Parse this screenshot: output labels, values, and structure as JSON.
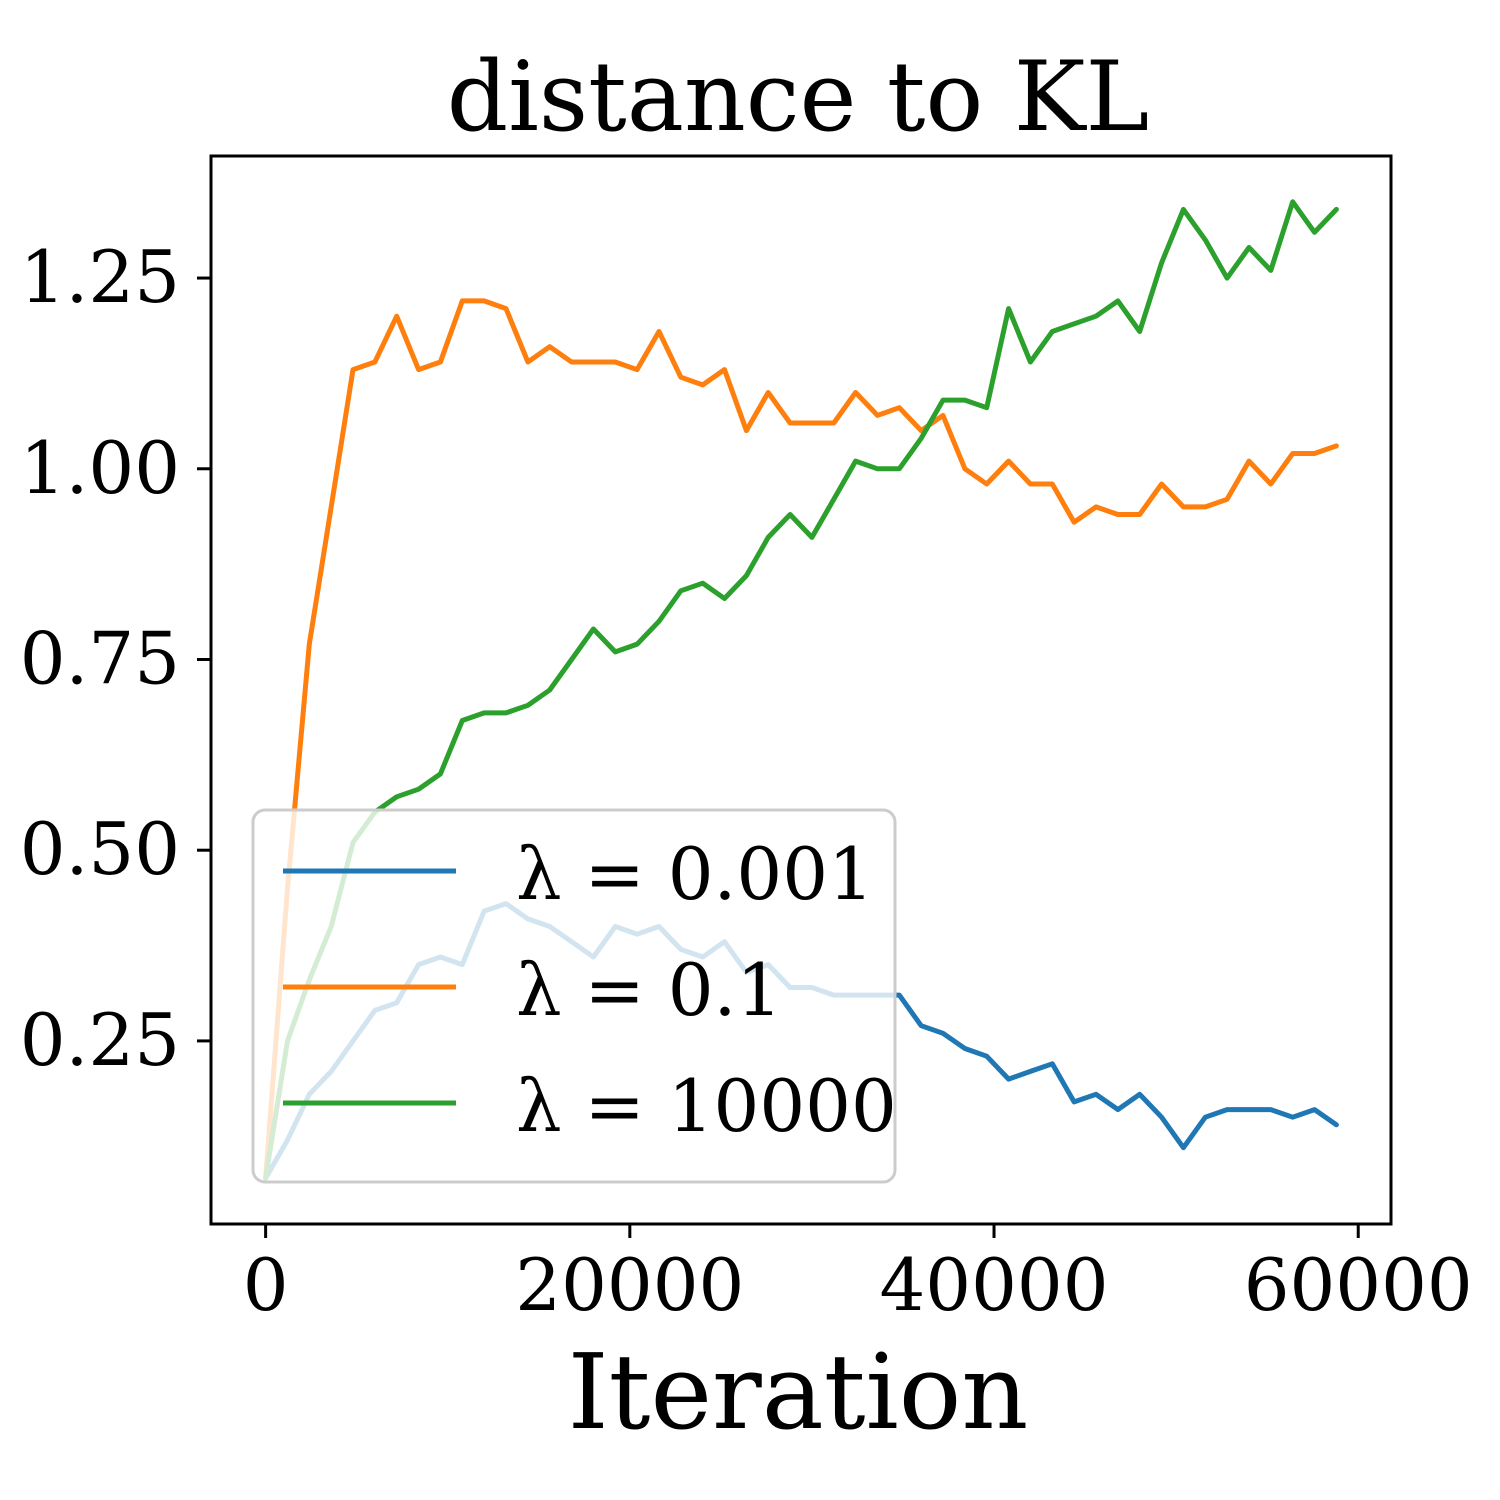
{
  "chart_data": {
    "type": "line",
    "title": "distance to KL",
    "xlabel": "Iteration",
    "ylabel": "",
    "xlim": [
      -3000,
      61800
    ],
    "ylim": [
      0.01,
      1.41
    ],
    "xticks": [
      0,
      20000,
      40000,
      60000
    ],
    "xtick_labels": [
      "0",
      "20000",
      "40000",
      "60000"
    ],
    "yticks": [
      0.25,
      0.5,
      0.75,
      1.0,
      1.25
    ],
    "ytick_labels": [
      "0.25",
      "0.50",
      "0.75",
      "1.00",
      "1.25"
    ],
    "grid": false,
    "legend_position": "lower-left",
    "x": [
      0,
      1200,
      2400,
      3600,
      4800,
      6000,
      7200,
      8400,
      9600,
      10800,
      12000,
      13200,
      14400,
      15600,
      16800,
      18000,
      19200,
      20400,
      21600,
      22800,
      24000,
      25200,
      26400,
      27600,
      28800,
      30000,
      31200,
      32400,
      33600,
      34800,
      36000,
      37200,
      38400,
      39600,
      40800,
      42000,
      43200,
      44400,
      45600,
      46800,
      48000,
      49200,
      50400,
      51600,
      52800,
      54000,
      55200,
      56400,
      57600,
      58800
    ],
    "series": [
      {
        "name": "λ = 0.001",
        "color": "#1f77b4",
        "values": [
          0.07,
          0.12,
          0.18,
          0.21,
          0.25,
          0.29,
          0.3,
          0.35,
          0.36,
          0.35,
          0.42,
          0.43,
          0.41,
          0.4,
          0.38,
          0.36,
          0.4,
          0.39,
          0.4,
          0.37,
          0.36,
          0.38,
          0.34,
          0.35,
          0.32,
          0.32,
          0.31,
          0.31,
          0.31,
          0.31,
          0.27,
          0.26,
          0.24,
          0.23,
          0.2,
          0.21,
          0.22,
          0.17,
          0.18,
          0.16,
          0.18,
          0.15,
          0.11,
          0.15,
          0.16,
          0.16,
          0.16,
          0.15,
          0.16,
          0.14
        ]
      },
      {
        "name": "λ = 0.1",
        "color": "#ff7f0e",
        "values": [
          0.07,
          0.45,
          0.77,
          0.95,
          1.13,
          1.14,
          1.2,
          1.13,
          1.14,
          1.22,
          1.22,
          1.21,
          1.14,
          1.16,
          1.14,
          1.14,
          1.14,
          1.13,
          1.18,
          1.12,
          1.11,
          1.13,
          1.05,
          1.1,
          1.06,
          1.06,
          1.06,
          1.1,
          1.07,
          1.08,
          1.05,
          1.07,
          1.0,
          0.98,
          1.01,
          0.98,
          0.98,
          0.93,
          0.95,
          0.94,
          0.94,
          0.98,
          0.95,
          0.95,
          0.96,
          1.01,
          0.98,
          1.02,
          1.02,
          1.03
        ]
      },
      {
        "name": "λ = 10000",
        "color": "#2ca02c",
        "values": [
          0.07,
          0.25,
          0.33,
          0.4,
          0.51,
          0.55,
          0.57,
          0.58,
          0.6,
          0.67,
          0.68,
          0.68,
          0.69,
          0.71,
          0.75,
          0.79,
          0.76,
          0.77,
          0.8,
          0.84,
          0.85,
          0.83,
          0.86,
          0.91,
          0.94,
          0.91,
          0.96,
          1.01,
          1.0,
          1.0,
          1.04,
          1.09,
          1.09,
          1.08,
          1.21,
          1.14,
          1.18,
          1.19,
          1.2,
          1.22,
          1.18,
          1.27,
          1.34,
          1.3,
          1.25,
          1.29,
          1.26,
          1.35,
          1.31,
          1.34
        ]
      }
    ],
    "legend": [
      {
        "label": "λ = 0.001",
        "color": "#1f77b4"
      },
      {
        "label": "λ = 0.1",
        "color": "#ff7f0e"
      },
      {
        "label": "λ = 10000",
        "color": "#2ca02c"
      }
    ]
  }
}
